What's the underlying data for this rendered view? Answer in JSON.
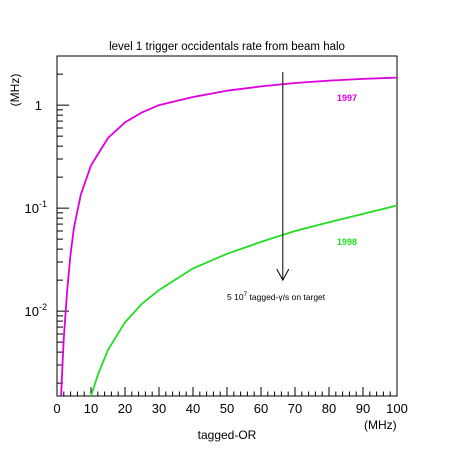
{
  "chart_data": {
    "type": "line",
    "title": "level 1 trigger occidentals rate from beam halo",
    "xlabel": "tagged-OR",
    "xunit": "(MHz)",
    "yunit": "(MHz)",
    "xlim": [
      0,
      100
    ],
    "ylim": [
      0.0015,
      3
    ],
    "yscale": "log",
    "x_ticks": [
      0,
      10,
      20,
      30,
      40,
      50,
      60,
      70,
      80,
      90,
      100
    ],
    "y_tick_labels": [
      {
        "value": 0.01,
        "base": "10",
        "exp": "-2"
      },
      {
        "value": 0.1,
        "base": "10",
        "exp": "-1"
      },
      {
        "value": 1,
        "base": "1",
        "exp": ""
      }
    ],
    "grid": false,
    "series": [
      {
        "name": "1997",
        "color": "#dd00dd",
        "x": [
          1.2,
          1.5,
          2,
          3,
          4,
          5,
          7,
          10,
          15,
          20,
          25,
          30,
          40,
          50,
          60,
          70,
          80,
          90,
          100
        ],
        "y": [
          0.0015,
          0.0025,
          0.0055,
          0.016,
          0.036,
          0.065,
          0.135,
          0.26,
          0.48,
          0.68,
          0.85,
          1.0,
          1.2,
          1.38,
          1.52,
          1.64,
          1.73,
          1.8,
          1.85
        ]
      },
      {
        "name": "1998",
        "color": "#22dd22",
        "x": [
          10,
          12,
          15,
          20,
          25,
          30,
          40,
          50,
          60,
          70,
          80,
          90,
          100
        ],
        "y": [
          0.0015,
          0.0024,
          0.0042,
          0.0078,
          0.0118,
          0.016,
          0.026,
          0.036,
          0.047,
          0.06,
          0.073,
          0.088,
          0.106
        ]
      }
    ],
    "annotation": {
      "x": 67,
      "y_from": 2.1,
      "y_to": 0.02,
      "text_main": "5 10",
      "text_sup": "7",
      "text_tail": " tagged-γ/s on target"
    }
  }
}
